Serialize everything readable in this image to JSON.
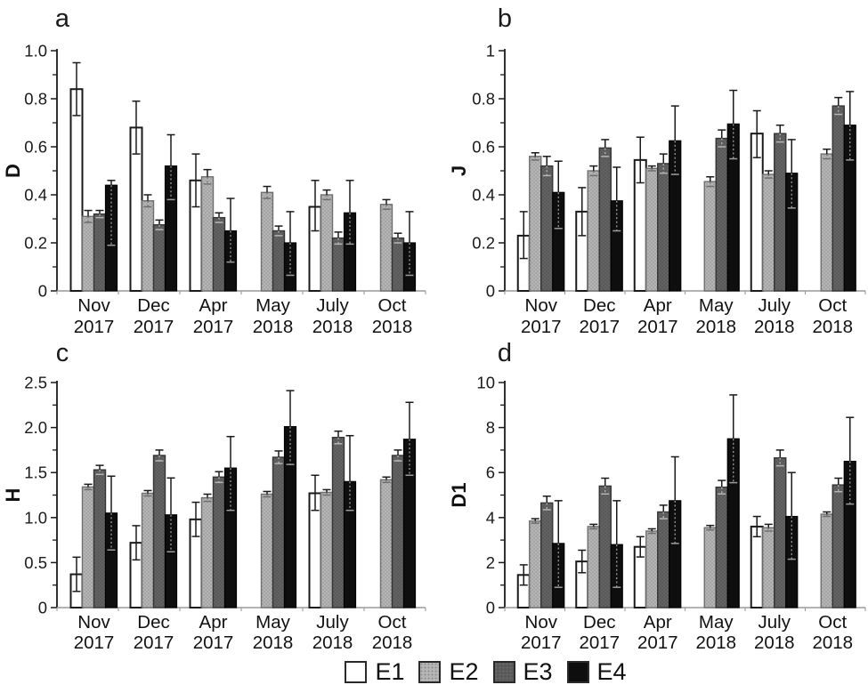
{
  "figure": {
    "legend_position": "bottom",
    "legend": [
      {
        "label": "E1",
        "fill": "#ffffff",
        "border": "#1a1a1a",
        "texture": false,
        "dot": "none"
      },
      {
        "label": "E2",
        "fill": "#b5b5b5",
        "border": "#6f6f6f",
        "texture": true,
        "dot": "rgba(0,0,0,0.22)"
      },
      {
        "label": "E3",
        "fill": "#595959",
        "border": "#353535",
        "texture": true,
        "dot": "rgba(255,255,255,0.14)"
      },
      {
        "label": "E4",
        "fill": "#0e0e0e",
        "border": "#000000",
        "texture": false,
        "dot": "none"
      }
    ]
  },
  "chart_data": [
    {
      "type": "bar",
      "panel_letter": "a",
      "ylabel": "D",
      "ylim": [
        0,
        1.0
      ],
      "grid": false,
      "ytick_values": [
        0,
        0.2,
        0.4,
        0.6,
        0.8,
        1.0
      ],
      "ytick_labels": [
        "0",
        "0.2",
        "0.4",
        "0.6",
        "0.8",
        "1.0"
      ],
      "categories_line1": [
        "Nov",
        "Dec",
        "Apr",
        "May",
        "July",
        "Oct"
      ],
      "categories_line2": [
        "2017",
        "2017",
        "2017",
        "2018",
        "2018",
        "2018"
      ],
      "series": [
        {
          "name": "E1",
          "values": [
            0.84,
            0.68,
            0.46,
            null,
            0.35,
            null
          ],
          "err_up": [
            0.11,
            0.11,
            0.11,
            null,
            0.11,
            null
          ],
          "err_dn": [
            0.11,
            0.11,
            0.11,
            null,
            0.1,
            null
          ]
        },
        {
          "name": "E2",
          "values": [
            0.31,
            0.375,
            0.475,
            0.41,
            0.4,
            0.36
          ],
          "err_up": [
            0.025,
            0.025,
            0.03,
            0.025,
            0.02,
            0.02
          ],
          "err_dn": [
            0.025,
            0.025,
            0.03,
            0.025,
            0.02,
            0.02
          ]
        },
        {
          "name": "E3",
          "values": [
            0.32,
            0.275,
            0.305,
            0.25,
            0.22,
            0.22
          ],
          "err_up": [
            0.015,
            0.02,
            0.02,
            0.02,
            0.025,
            0.02
          ],
          "err_dn": [
            0.015,
            0.02,
            0.02,
            0.02,
            0.025,
            0.02
          ]
        },
        {
          "name": "E4",
          "values": [
            0.44,
            0.52,
            0.25,
            0.2,
            0.325,
            0.2
          ],
          "err_up": [
            0.02,
            0.13,
            0.135,
            0.13,
            0.135,
            0.13
          ],
          "err_dn": [
            0.25,
            0.14,
            0.13,
            0.135,
            0.13,
            0.135
          ]
        }
      ]
    },
    {
      "type": "bar",
      "panel_letter": "b",
      "ylabel": "J",
      "ylim": [
        0,
        1.0
      ],
      "grid": false,
      "ytick_values": [
        0,
        0.2,
        0.4,
        0.6,
        0.8,
        1.0
      ],
      "ytick_labels": [
        "0",
        "0.2",
        "0.4",
        "0.6",
        "0.8",
        "1"
      ],
      "categories_line1": [
        "Nov",
        "Dec",
        "Apr",
        "May",
        "July",
        "Oct"
      ],
      "categories_line2": [
        "2017",
        "2017",
        "2017",
        "2018",
        "2018",
        "2018"
      ],
      "series": [
        {
          "name": "E1",
          "values": [
            0.23,
            0.33,
            0.545,
            null,
            0.655,
            null
          ],
          "err_up": [
            0.1,
            0.1,
            0.095,
            null,
            0.095,
            null
          ],
          "err_dn": [
            0.095,
            0.1,
            0.095,
            null,
            0.1,
            null
          ]
        },
        {
          "name": "E2",
          "values": [
            0.56,
            0.5,
            0.51,
            0.455,
            0.485,
            0.57
          ],
          "err_up": [
            0.015,
            0.02,
            0.01,
            0.02,
            0.015,
            0.02
          ],
          "err_dn": [
            0.015,
            0.02,
            0.01,
            0.02,
            0.015,
            0.02
          ]
        },
        {
          "name": "E3",
          "values": [
            0.52,
            0.595,
            0.53,
            0.635,
            0.655,
            0.77
          ],
          "err_up": [
            0.04,
            0.035,
            0.04,
            0.035,
            0.035,
            0.035
          ],
          "err_dn": [
            0.04,
            0.035,
            0.04,
            0.035,
            0.035,
            0.035
          ]
        },
        {
          "name": "E4",
          "values": [
            0.41,
            0.375,
            0.625,
            0.695,
            0.49,
            0.69
          ],
          "err_up": [
            0.13,
            0.14,
            0.145,
            0.14,
            0.14,
            0.14
          ],
          "err_dn": [
            0.15,
            0.125,
            0.14,
            0.145,
            0.145,
            0.145
          ]
        }
      ]
    },
    {
      "type": "bar",
      "panel_letter": "c",
      "ylabel": "H",
      "ylim": [
        0,
        2.5
      ],
      "grid": false,
      "ytick_values": [
        0,
        0.5,
        1.0,
        1.5,
        2.0,
        2.5
      ],
      "ytick_labels": [
        "0",
        "0.5",
        "1.0",
        "1.5",
        "2.0",
        "2.5"
      ],
      "categories_line1": [
        "Nov",
        "Dec",
        "Apr",
        "May",
        "July",
        "Oct"
      ],
      "categories_line2": [
        "2017",
        "2017",
        "2017",
        "2018",
        "2018",
        "2018"
      ],
      "series": [
        {
          "name": "E1",
          "values": [
            0.37,
            0.72,
            0.98,
            null,
            1.27,
            null
          ],
          "err_up": [
            0.19,
            0.19,
            0.19,
            null,
            0.2,
            null
          ],
          "err_dn": [
            0.19,
            0.19,
            0.19,
            null,
            0.19,
            null
          ]
        },
        {
          "name": "E2",
          "values": [
            1.34,
            1.27,
            1.22,
            1.26,
            1.28,
            1.42
          ],
          "err_up": [
            0.03,
            0.03,
            0.04,
            0.03,
            0.03,
            0.03
          ],
          "err_dn": [
            0.03,
            0.03,
            0.04,
            0.03,
            0.03,
            0.03
          ]
        },
        {
          "name": "E3",
          "values": [
            1.53,
            1.69,
            1.45,
            1.67,
            1.89,
            1.69
          ],
          "err_up": [
            0.05,
            0.06,
            0.06,
            0.07,
            0.07,
            0.06
          ],
          "err_dn": [
            0.05,
            0.06,
            0.06,
            0.07,
            0.07,
            0.06
          ]
        },
        {
          "name": "E4",
          "values": [
            1.05,
            1.03,
            1.55,
            2.01,
            1.4,
            1.87
          ],
          "err_up": [
            0.41,
            0.41,
            0.35,
            0.4,
            0.51,
            0.41
          ],
          "err_dn": [
            0.41,
            0.41,
            0.47,
            0.42,
            0.32,
            0.4
          ]
        }
      ]
    },
    {
      "type": "bar",
      "panel_letter": "d",
      "ylabel": "D1",
      "ylim": [
        0,
        10
      ],
      "grid": false,
      "ytick_values": [
        0,
        2,
        4,
        6,
        8,
        10
      ],
      "ytick_labels": [
        "0",
        "2",
        "4",
        "6",
        "8",
        "10"
      ],
      "categories_line1": [
        "Nov",
        "Dec",
        "Apr",
        "May",
        "July",
        "Oct"
      ],
      "categories_line2": [
        "2017",
        "2017",
        "2017",
        "2018",
        "2018",
        "2018"
      ],
      "series": [
        {
          "name": "E1",
          "values": [
            1.45,
            2.05,
            2.7,
            null,
            3.6,
            null
          ],
          "err_up": [
            0.45,
            0.5,
            0.45,
            null,
            0.45,
            null
          ],
          "err_dn": [
            0.45,
            0.5,
            0.45,
            null,
            0.45,
            null
          ]
        },
        {
          "name": "E2",
          "values": [
            3.85,
            3.6,
            3.4,
            3.55,
            3.55,
            4.15
          ],
          "err_up": [
            0.1,
            0.1,
            0.1,
            0.1,
            0.15,
            0.1
          ],
          "err_dn": [
            0.1,
            0.1,
            0.1,
            0.1,
            0.15,
            0.1
          ]
        },
        {
          "name": "E3",
          "values": [
            4.65,
            5.4,
            4.25,
            5.35,
            6.65,
            5.45
          ],
          "err_up": [
            0.3,
            0.35,
            0.3,
            0.3,
            0.35,
            0.3
          ],
          "err_dn": [
            0.3,
            0.35,
            0.3,
            0.3,
            0.35,
            0.3
          ]
        },
        {
          "name": "E4",
          "values": [
            2.85,
            2.8,
            4.75,
            7.5,
            4.05,
            6.5
          ],
          "err_up": [
            1.9,
            1.95,
            1.95,
            1.95,
            1.95,
            1.95
          ],
          "err_dn": [
            1.95,
            1.9,
            1.9,
            1.95,
            1.9,
            1.9
          ]
        }
      ]
    }
  ]
}
